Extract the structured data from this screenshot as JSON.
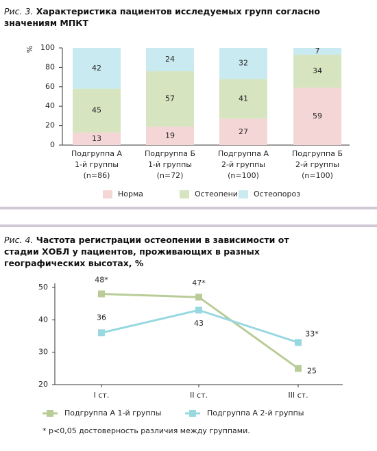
{
  "chart_data": [
    {
      "type": "stacked_bar",
      "label": "Рис. 3.",
      "title": "Характеристика пациентов исследуемых групп согласно значениям МПКТ",
      "ylabel": "%",
      "categories": [
        [
          "Подгруппа А",
          "1-й группы",
          "(n=86)"
        ],
        [
          "Подгруппа Б",
          "1-й группы",
          "(n=72)"
        ],
        [
          "Подгруппа А",
          "2-й группы",
          "(n=100)"
        ],
        [
          "Подгруппа Б",
          "2-й группы",
          "(n=100)"
        ]
      ],
      "series": [
        {
          "name": "Норма",
          "color": "#f4d6d6",
          "values": [
            13,
            19,
            27,
            59
          ]
        },
        {
          "name": "Остеопения",
          "color": "#d6e4c0",
          "values": [
            45,
            57,
            41,
            34
          ]
        },
        {
          "name": "Остеопороз",
          "color": "#c9eaf0",
          "values": [
            42,
            24,
            32,
            7
          ]
        }
      ],
      "ylim": [
        0,
        100
      ],
      "yticks": [
        0,
        20,
        40,
        60,
        80,
        100
      ]
    },
    {
      "type": "line",
      "label": "Рис. 4.",
      "title": "Частота регистрации остеопении в зависимости от стадии ХОБЛ у пациентов, проживающих в разных географических высотах, %",
      "categories": [
        "I ст.",
        "II ст.",
        "III ст."
      ],
      "series": [
        {
          "name": "Подгруппа А 1-й группы",
          "color": "#b9cc98",
          "values": [
            48,
            47,
            25
          ],
          "value_labels": [
            "48*",
            "47*",
            "25"
          ]
        },
        {
          "name": "Подгруппа А 2-й группы",
          "color": "#98d8e0",
          "values": [
            36,
            43,
            33
          ],
          "value_labels": [
            "36",
            "43",
            "33*"
          ]
        }
      ],
      "ylim": [
        20,
        50
      ],
      "yticks": [
        20,
        30,
        40,
        50
      ],
      "footnote": "* p<0,05 достоверность различия между группами."
    }
  ]
}
